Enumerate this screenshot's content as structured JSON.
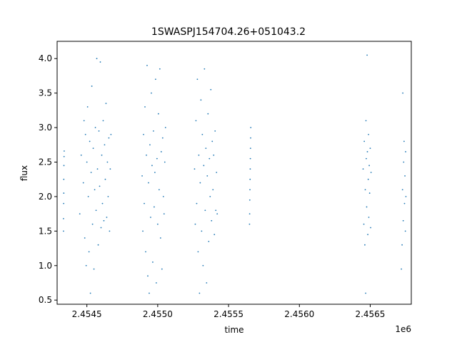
{
  "chart_data": {
    "type": "scatter",
    "title": "1SWASPJ154704.26+051043.2",
    "xlabel": "time",
    "ylabel": "flux",
    "x_offset_label": "1e6",
    "xlim": [
      2454290,
      2456790
    ],
    "ylim": [
      0.44,
      4.25
    ],
    "grid": false,
    "point_color": "#1f77b4",
    "xticks": [
      {
        "value": 2454500,
        "label": "2.4545"
      },
      {
        "value": 2455000,
        "label": "2.4550"
      },
      {
        "value": 2455500,
        "label": "2.4555"
      },
      {
        "value": 2456000,
        "label": "2.4560"
      },
      {
        "value": 2456500,
        "label": "2.4565"
      }
    ],
    "yticks": [
      {
        "value": 0.5,
        "label": "0.5"
      },
      {
        "value": 1.0,
        "label": "1.0"
      },
      {
        "value": 1.5,
        "label": "1.5"
      },
      {
        "value": 2.0,
        "label": "2.0"
      },
      {
        "value": 2.5,
        "label": "2.5"
      },
      {
        "value": 3.0,
        "label": "3.0"
      },
      {
        "value": 3.5,
        "label": "3.5"
      },
      {
        "value": 4.0,
        "label": "4.0"
      }
    ],
    "series": [
      {
        "x": 2454335,
        "y": 1.5
      },
      {
        "x": 2454335,
        "y": 1.68
      },
      {
        "x": 2454336,
        "y": 1.9
      },
      {
        "x": 2454337,
        "y": 2.05
      },
      {
        "x": 2454337,
        "y": 2.25
      },
      {
        "x": 2454338,
        "y": 2.45
      },
      {
        "x": 2454339,
        "y": 2.58
      },
      {
        "x": 2454340,
        "y": 2.66
      },
      {
        "x": 2454450,
        "y": 1.75
      },
      {
        "x": 2454460,
        "y": 2.6
      },
      {
        "x": 2454475,
        "y": 2.2
      },
      {
        "x": 2454480,
        "y": 3.1
      },
      {
        "x": 2454485,
        "y": 1.4
      },
      {
        "x": 2454490,
        "y": 2.9
      },
      {
        "x": 2454495,
        "y": 1.0
      },
      {
        "x": 2454500,
        "y": 2.5
      },
      {
        "x": 2454505,
        "y": 3.3
      },
      {
        "x": 2454510,
        "y": 2.0
      },
      {
        "x": 2454515,
        "y": 1.2
      },
      {
        "x": 2454520,
        "y": 2.8
      },
      {
        "x": 2454525,
        "y": 0.6
      },
      {
        "x": 2454530,
        "y": 2.35
      },
      {
        "x": 2454535,
        "y": 3.6
      },
      {
        "x": 2454540,
        "y": 1.6
      },
      {
        "x": 2454545,
        "y": 2.7
      },
      {
        "x": 2454550,
        "y": 0.95
      },
      {
        "x": 2454555,
        "y": 2.1
      },
      {
        "x": 2454560,
        "y": 3.0
      },
      {
        "x": 2454565,
        "y": 1.8
      },
      {
        "x": 2454570,
        "y": 4.0
      },
      {
        "x": 2454575,
        "y": 2.4
      },
      {
        "x": 2454580,
        "y": 1.3
      },
      {
        "x": 2454585,
        "y": 2.95
      },
      {
        "x": 2454590,
        "y": 2.15
      },
      {
        "x": 2454595,
        "y": 3.95
      },
      {
        "x": 2454600,
        "y": 1.55
      },
      {
        "x": 2454605,
        "y": 2.6
      },
      {
        "x": 2454610,
        "y": 1.9
      },
      {
        "x": 2454615,
        "y": 3.1
      },
      {
        "x": 2454620,
        "y": 1.65
      },
      {
        "x": 2454625,
        "y": 2.75
      },
      {
        "x": 2454630,
        "y": 2.25
      },
      {
        "x": 2454635,
        "y": 3.35
      },
      {
        "x": 2454640,
        "y": 1.7
      },
      {
        "x": 2454645,
        "y": 2.5
      },
      {
        "x": 2454650,
        "y": 2.0
      },
      {
        "x": 2454655,
        "y": 2.85
      },
      {
        "x": 2454660,
        "y": 1.5
      },
      {
        "x": 2454665,
        "y": 2.4
      },
      {
        "x": 2454670,
        "y": 2.9
      },
      {
        "x": 2454890,
        "y": 2.3
      },
      {
        "x": 2454895,
        "y": 1.5
      },
      {
        "x": 2454900,
        "y": 2.9
      },
      {
        "x": 2454905,
        "y": 1.9
      },
      {
        "x": 2454910,
        "y": 3.3
      },
      {
        "x": 2454915,
        "y": 1.2
      },
      {
        "x": 2454920,
        "y": 2.6
      },
      {
        "x": 2454925,
        "y": 3.9
      },
      {
        "x": 2454930,
        "y": 0.85
      },
      {
        "x": 2454935,
        "y": 2.2
      },
      {
        "x": 2454940,
        "y": 0.6
      },
      {
        "x": 2454945,
        "y": 2.75
      },
      {
        "x": 2454950,
        "y": 1.7
      },
      {
        "x": 2454955,
        "y": 3.5
      },
      {
        "x": 2454960,
        "y": 2.45
      },
      {
        "x": 2454965,
        "y": 1.05
      },
      {
        "x": 2454970,
        "y": 2.95
      },
      {
        "x": 2454975,
        "y": 1.85
      },
      {
        "x": 2454980,
        "y": 2.35
      },
      {
        "x": 2454985,
        "y": 3.7
      },
      {
        "x": 2454990,
        "y": 0.75
      },
      {
        "x": 2454995,
        "y": 2.55
      },
      {
        "x": 2455000,
        "y": 1.6
      },
      {
        "x": 2455005,
        "y": 3.2
      },
      {
        "x": 2455010,
        "y": 2.1
      },
      {
        "x": 2455015,
        "y": 3.85
      },
      {
        "x": 2455020,
        "y": 1.4
      },
      {
        "x": 2455025,
        "y": 2.65
      },
      {
        "x": 2455030,
        "y": 0.95
      },
      {
        "x": 2455035,
        "y": 2.85
      },
      {
        "x": 2455040,
        "y": 2.0
      },
      {
        "x": 2455045,
        "y": 1.75
      },
      {
        "x": 2455050,
        "y": 2.5
      },
      {
        "x": 2455055,
        "y": 3.0
      },
      {
        "x": 2455260,
        "y": 2.4
      },
      {
        "x": 2455265,
        "y": 1.6
      },
      {
        "x": 2455270,
        "y": 3.1
      },
      {
        "x": 2455275,
        "y": 1.9
      },
      {
        "x": 2455280,
        "y": 3.7
      },
      {
        "x": 2455285,
        "y": 1.2
      },
      {
        "x": 2455290,
        "y": 2.6
      },
      {
        "x": 2455295,
        "y": 0.6
      },
      {
        "x": 2455300,
        "y": 2.2
      },
      {
        "x": 2455305,
        "y": 3.4
      },
      {
        "x": 2455310,
        "y": 1.5
      },
      {
        "x": 2455315,
        "y": 2.9
      },
      {
        "x": 2455320,
        "y": 1.0
      },
      {
        "x": 2455325,
        "y": 2.45
      },
      {
        "x": 2455330,
        "y": 3.85
      },
      {
        "x": 2455335,
        "y": 1.8
      },
      {
        "x": 2455340,
        "y": 2.7
      },
      {
        "x": 2455345,
        "y": 0.75
      },
      {
        "x": 2455350,
        "y": 2.3
      },
      {
        "x": 2455355,
        "y": 3.2
      },
      {
        "x": 2455360,
        "y": 1.35
      },
      {
        "x": 2455365,
        "y": 2.55
      },
      {
        "x": 2455370,
        "y": 2.0
      },
      {
        "x": 2455375,
        "y": 3.55
      },
      {
        "x": 2455380,
        "y": 1.65
      },
      {
        "x": 2455385,
        "y": 2.8
      },
      {
        "x": 2455390,
        "y": 2.1
      },
      {
        "x": 2455395,
        "y": 2.6
      },
      {
        "x": 2455400,
        "y": 1.45
      },
      {
        "x": 2455405,
        "y": 2.95
      },
      {
        "x": 2455410,
        "y": 1.8
      },
      {
        "x": 2455415,
        "y": 2.35
      },
      {
        "x": 2455420,
        "y": 1.75
      },
      {
        "x": 2455648,
        "y": 1.6
      },
      {
        "x": 2455649,
        "y": 1.75
      },
      {
        "x": 2455650,
        "y": 1.95
      },
      {
        "x": 2455651,
        "y": 2.1
      },
      {
        "x": 2455652,
        "y": 2.25
      },
      {
        "x": 2455653,
        "y": 2.4
      },
      {
        "x": 2455654,
        "y": 2.55
      },
      {
        "x": 2455655,
        "y": 2.7
      },
      {
        "x": 2455656,
        "y": 2.85
      },
      {
        "x": 2455657,
        "y": 3.0
      },
      {
        "x": 2456450,
        "y": 2.4
      },
      {
        "x": 2456455,
        "y": 1.6
      },
      {
        "x": 2456458,
        "y": 2.8
      },
      {
        "x": 2456462,
        "y": 1.3
      },
      {
        "x": 2456465,
        "y": 2.1
      },
      {
        "x": 2456468,
        "y": 0.6
      },
      {
        "x": 2456470,
        "y": 3.1
      },
      {
        "x": 2456472,
        "y": 2.55
      },
      {
        "x": 2456475,
        "y": 1.85
      },
      {
        "x": 2456478,
        "y": 4.05
      },
      {
        "x": 2456480,
        "y": 2.65
      },
      {
        "x": 2456483,
        "y": 1.45
      },
      {
        "x": 2456486,
        "y": 2.25
      },
      {
        "x": 2456488,
        "y": 2.9
      },
      {
        "x": 2456490,
        "y": 1.7
      },
      {
        "x": 2456493,
        "y": 2.45
      },
      {
        "x": 2456496,
        "y": 2.05
      },
      {
        "x": 2456500,
        "y": 2.7
      },
      {
        "x": 2456503,
        "y": 1.55
      },
      {
        "x": 2456506,
        "y": 2.35
      },
      {
        "x": 2456720,
        "y": 0.95
      },
      {
        "x": 2456725,
        "y": 1.3
      },
      {
        "x": 2456728,
        "y": 2.1
      },
      {
        "x": 2456730,
        "y": 3.5
      },
      {
        "x": 2456733,
        "y": 1.65
      },
      {
        "x": 2456736,
        "y": 2.5
      },
      {
        "x": 2456739,
        "y": 2.8
      },
      {
        "x": 2456742,
        "y": 1.9
      },
      {
        "x": 2456745,
        "y": 2.3
      },
      {
        "x": 2456748,
        "y": 1.5
      },
      {
        "x": 2456750,
        "y": 2.65
      },
      {
        "x": 2456752,
        "y": 2.0
      }
    ]
  }
}
